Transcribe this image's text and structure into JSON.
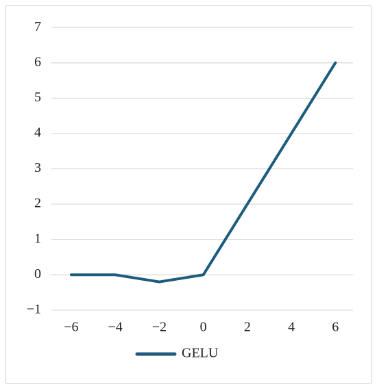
{
  "chart_data": {
    "type": "line",
    "x": [
      -6,
      -4,
      -2,
      0,
      2,
      4,
      6
    ],
    "series": [
      {
        "name": "GELU",
        "color": "#1d5c7c",
        "values": [
          0,
          0,
          -0.2,
          0,
          2,
          4,
          6
        ]
      }
    ],
    "xlim": [
      -6.9,
      6.8
    ],
    "xticks": [
      {
        "value": -6,
        "label": "−6"
      },
      {
        "value": -4,
        "label": "−4"
      },
      {
        "value": -2,
        "label": "−2"
      },
      0,
      2,
      4,
      6
    ],
    "ylim": [
      -1.1,
      7.1
    ],
    "yticks": [
      {
        "value": -1,
        "label": "−1"
      },
      0,
      1,
      2,
      3,
      4,
      5,
      6,
      7
    ],
    "grid": true,
    "legend": "bottom"
  }
}
